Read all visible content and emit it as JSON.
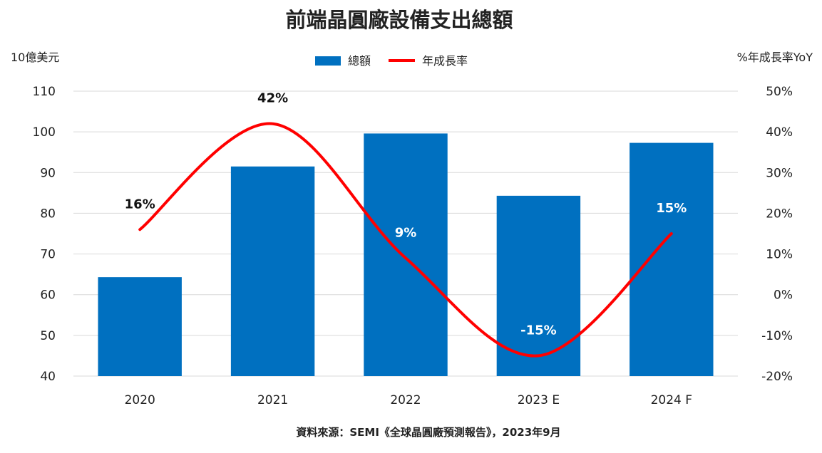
{
  "chart_data": {
    "type": "bar",
    "title": "前端晶圓廠設備支出總額",
    "y_left_label": "10億美元",
    "y_right_label": "%年成長率YoY",
    "categories": [
      "2020",
      "2021",
      "2022",
      "2023 E",
      "2024 F"
    ],
    "series": [
      {
        "name": "總額",
        "type": "bar",
        "axis": "left",
        "color": "#0070C0",
        "values": [
          64.3,
          91.5,
          99.6,
          84.3,
          97.3
        ]
      },
      {
        "name": "年成長率",
        "type": "line",
        "axis": "right",
        "color": "#FF0000",
        "values": [
          16,
          42,
          9,
          -15,
          15
        ],
        "labels": [
          "16%",
          "42%",
          "9%",
          "-15%",
          "15%"
        ]
      }
    ],
    "y_left": {
      "min": 40,
      "max": 110,
      "ticks": [
        40,
        50,
        60,
        70,
        80,
        90,
        100,
        110
      ]
    },
    "y_right": {
      "min": -20,
      "max": 50,
      "ticks": [
        -20,
        -10,
        0,
        10,
        20,
        30,
        40,
        50
      ],
      "tick_labels": [
        "-20%",
        "-10%",
        "0%",
        "10%",
        "20%",
        "30%",
        "40%",
        "50%"
      ]
    },
    "grid": true,
    "legend_position": "top-center",
    "source_note": "資料來源：SEMI《全球晶圓廠預測報告》，2023年9月"
  }
}
